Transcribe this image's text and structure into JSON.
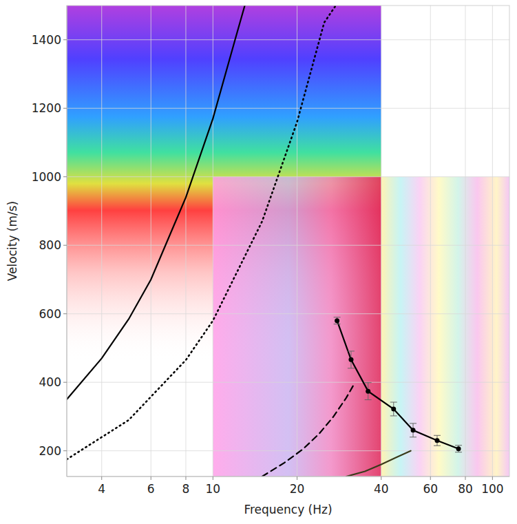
{
  "chart_data": {
    "type": "line",
    "x_label": "Frequency (Hz)",
    "y_label": "Velocity (m/s)",
    "log": "x",
    "grid": true,
    "xlim": [
      3,
      115
    ],
    "ylim": [
      125,
      1500
    ],
    "xticks": [
      4,
      6,
      8,
      10,
      20,
      40,
      60,
      80,
      100
    ],
    "yticks": [
      200,
      400,
      600,
      800,
      1000,
      1200,
      1400
    ],
    "image_regions": [
      {
        "x": [
          3,
          40
        ],
        "y": [
          200,
          1500
        ]
      },
      {
        "x": [
          10,
          40
        ],
        "y": [
          125,
          1000
        ]
      },
      {
        "x": [
          40,
          115
        ],
        "y": [
          125,
          1000
        ]
      }
    ],
    "series": [
      {
        "color": "#000000",
        "line_style": "solid",
        "marker": "none",
        "x": [
          3,
          4,
          5,
          6,
          8,
          10,
          12,
          13
        ],
        "values": [
          350,
          470,
          585,
          700,
          940,
          1170,
          1400,
          1500
        ]
      },
      {
        "color": "#000000",
        "line_style": "dotted",
        "marker": "none",
        "x": [
          3,
          5,
          8,
          10,
          15,
          20,
          25,
          27.5
        ],
        "values": [
          175,
          290,
          465,
          580,
          870,
          1160,
          1450,
          1500
        ]
      },
      {
        "color": "#000000",
        "line_style": "dashed",
        "marker": "none",
        "x": [
          15,
          18,
          21,
          24,
          27,
          30,
          32
        ],
        "values": [
          125,
          165,
          205,
          250,
          300,
          355,
          395
        ]
      },
      {
        "color": "#3a3a1a",
        "line_style": "solid",
        "marker": "none",
        "x": [
          30,
          35,
          40,
          45,
          51
        ],
        "values": [
          125,
          140,
          160,
          180,
          200
        ]
      },
      {
        "color": "#000000",
        "line_style": "solid",
        "marker": "circle",
        "x": [
          27.8,
          31.2,
          35.9,
          44.3,
          52,
          63.4,
          75.6
        ],
        "values": [
          580,
          466,
          374,
          322,
          260,
          230,
          206
        ],
        "errors": [
          10,
          25,
          25,
          20,
          20,
          15,
          10
        ]
      }
    ]
  }
}
